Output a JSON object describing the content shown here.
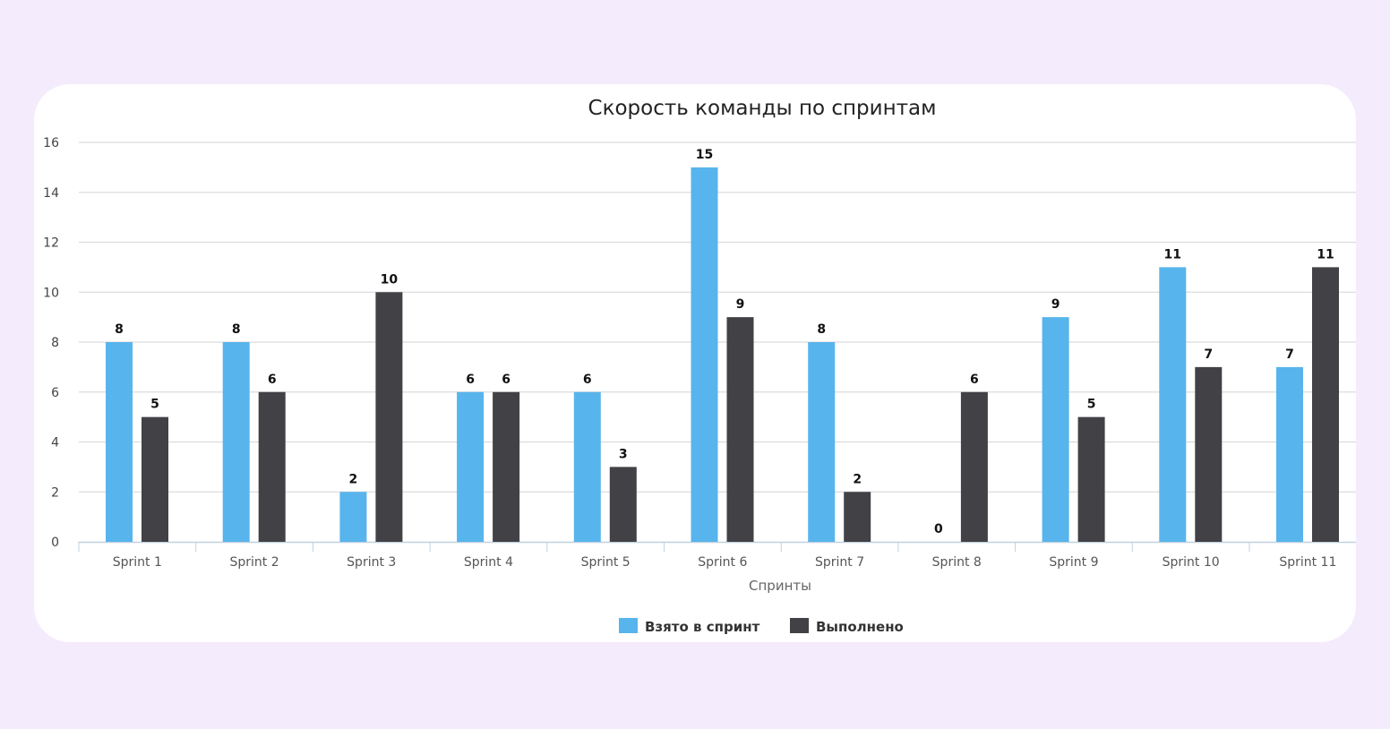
{
  "chart_data": {
    "type": "bar",
    "title": "Скорость команды по спринтам",
    "xlabel": "Спринты",
    "ylabel": "",
    "ylim": [
      0,
      16
    ],
    "yticks": [
      0,
      2,
      4,
      6,
      8,
      10,
      12,
      14,
      16
    ],
    "grid": true,
    "legend_position": "bottom-center",
    "categories": [
      "Sprint 1",
      "Sprint 2",
      "Sprint 3",
      "Sprint 4",
      "Sprint 5",
      "Sprint 6",
      "Sprint 7",
      "Sprint 8",
      "Sprint 9",
      "Sprint 10",
      "Sprint 11"
    ],
    "series": [
      {
        "name": "Взято в спринт",
        "color": "#58b4ec",
        "values": [
          8,
          8,
          2,
          6,
          6,
          15,
          8,
          0,
          9,
          11,
          7
        ]
      },
      {
        "name": "Выполнено",
        "color": "#424146",
        "values": [
          5,
          6,
          10,
          6,
          3,
          9,
          2,
          6,
          5,
          7,
          11
        ]
      }
    ]
  }
}
